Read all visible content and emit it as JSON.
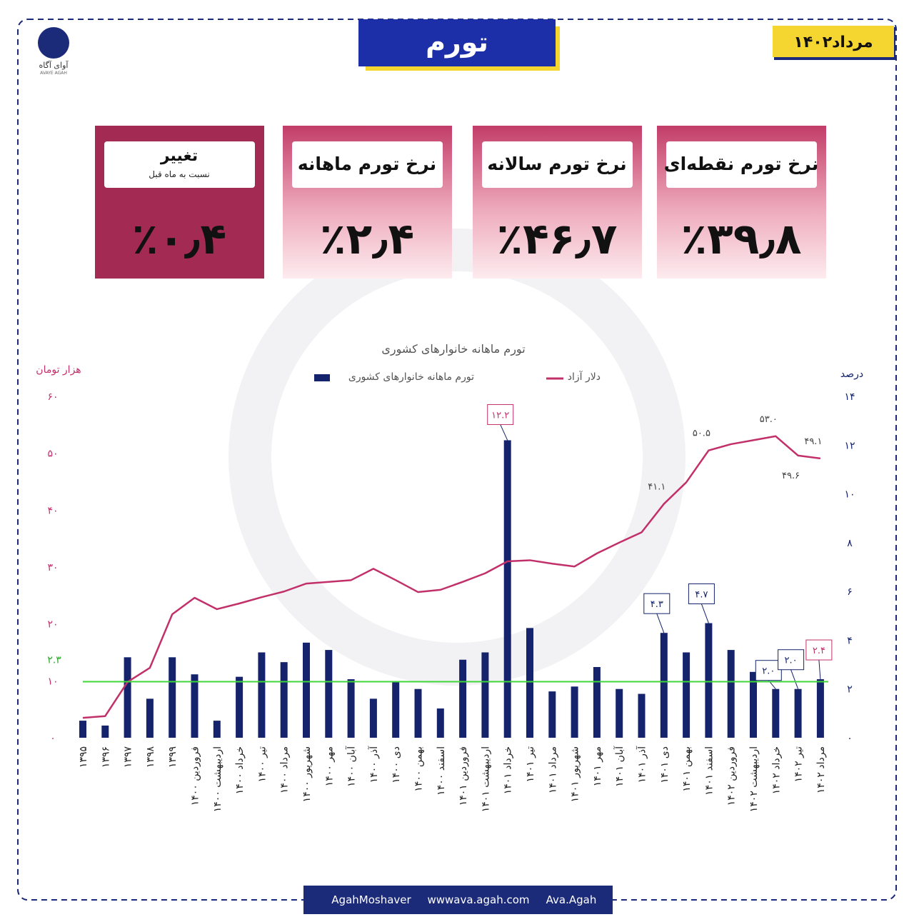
{
  "header": {
    "title": "تورم",
    "date": "مرداد۱۴۰۲",
    "logo_text": "آوای آگاه",
    "logo_latin": "AVAYE AGAH"
  },
  "cards": [
    {
      "title": "نرخ تورم نقطه‌ای",
      "value": "٪۳۹٫۸"
    },
    {
      "title": "نرخ تورم سالانه",
      "value": "٪۴۶٫۷"
    },
    {
      "title": "نرخ تورم ماهانه",
      "value": "٪۲٫۴"
    },
    {
      "title": "تغییر",
      "subtitle": "نسبت به ماه قبل",
      "value": "٪۰٫۴"
    }
  ],
  "footer": {
    "telegram": "AgahMoshaver",
    "website": "wwwava.agah.com",
    "instagram": "Ava.Agah"
  },
  "chart_data": {
    "type": "bar",
    "title": "تورم ماهانه خانوارهای کشوری",
    "ylabel": "هزار تومان",
    "y2label": "درصد",
    "categories": [
      "۱۳۹۵",
      "۱۳۹۶",
      "۱۳۹۷",
      "۱۳۹۸",
      "۱۳۹۹",
      "فروردین ۱۴۰۰",
      "اردیبهشت ۱۴۰۰",
      "خرداد ۱۴۰۰",
      "تیر ۱۴۰۰",
      "مرداد ۱۴۰۰",
      "شهریور ۱۴۰۰",
      "مهر ۱۴۰۰",
      "آبان ۱۴۰۰",
      "آذر ۱۴۰۰",
      "دی ۱۴۰۰",
      "بهمن ۱۴۰۰",
      "اسفند ۱۴۰۰",
      "فروردین ۱۴۰۱",
      "اردیبهشت ۱۴۰۱",
      "خرداد ۱۴۰۱",
      "تیر ۱۴۰۱",
      "مرداد ۱۴۰۱",
      "شهریور ۱۴۰۱",
      "مهر ۱۴۰۱",
      "آبان ۱۴۰۱",
      "آذر ۱۴۰۱",
      "دی ۱۴۰۱",
      "بهمن ۱۴۰۱",
      "اسفند ۱۴۰۱",
      "فروردین ۱۴۰۲",
      "اردیبهشت ۱۴۰۲",
      "خرداد ۱۴۰۲",
      "تیر ۱۴۰۲",
      "مرداد ۱۴۰۲"
    ],
    "series": [
      {
        "name": "تورم ماهانه خانوارهای کشوری",
        "type": "bar",
        "axis": "y2",
        "color": "#14236b",
        "values": [
          0.7,
          0.5,
          3.3,
          1.6,
          3.3,
          2.6,
          0.7,
          2.5,
          3.5,
          3.1,
          3.9,
          3.6,
          2.4,
          1.6,
          2.3,
          2.0,
          1.2,
          3.2,
          3.5,
          12.2,
          4.5,
          1.9,
          2.1,
          2.9,
          2.0,
          1.8,
          4.3,
          3.5,
          4.7,
          3.6,
          2.7,
          2.0,
          2.0,
          2.4
        ],
        "value_labels": [
          null,
          null,
          null,
          null,
          null,
          null,
          null,
          null,
          null,
          null,
          null,
          null,
          null,
          null,
          null,
          null,
          null,
          null,
          null,
          "۱۲.۲",
          null,
          null,
          null,
          null,
          null,
          null,
          "۴.۳",
          null,
          "۴.۷",
          null,
          null,
          "۲.۰",
          "۲.۰",
          "۲.۴"
        ]
      },
      {
        "name": "دلار آزاد",
        "type": "line",
        "color": "#c2306a",
        "values": [
          3.5,
          3.8,
          9.8,
          12.3,
          21.7,
          24.6,
          22.6,
          23.6,
          24.7,
          25.7,
          27.1,
          27.4,
          27.7,
          29.7,
          27.7,
          25.6,
          26.0,
          27.4,
          28.9,
          31.0,
          31.2,
          30.6,
          30.1,
          32.4,
          34.3,
          36.1,
          41.1,
          44.9,
          50.5,
          51.6,
          52.3,
          53.0,
          49.6,
          49.1
        ],
        "value_labels": [
          null,
          null,
          null,
          null,
          null,
          null,
          null,
          null,
          null,
          null,
          null,
          null,
          null,
          null,
          null,
          null,
          null,
          null,
          null,
          null,
          null,
          null,
          null,
          null,
          null,
          null,
          "۴۱.۱",
          null,
          "۵۰.۵",
          null,
          null,
          "۵۳.۰",
          "۴۹.۶",
          "۴۹.۱"
        ]
      }
    ],
    "reference_line": {
      "value": 2.3,
      "label": "۲.۳",
      "axis": "y2",
      "color": "#3fd63a"
    },
    "ylim": [
      0,
      60
    ],
    "yticks": [
      {
        "value": 0,
        "label": "۰"
      },
      {
        "value": 10,
        "label": "۱۰"
      },
      {
        "value": 20,
        "label": "۲۰"
      },
      {
        "value": 30,
        "label": "۳۰"
      },
      {
        "value": 40,
        "label": "۴۰"
      },
      {
        "value": 50,
        "label": "۵۰"
      },
      {
        "value": 60,
        "label": "۶۰"
      }
    ],
    "y2lim": [
      0,
      14
    ],
    "y2ticks": [
      {
        "value": 0,
        "label": "۰"
      },
      {
        "value": 2,
        "label": "۲"
      },
      {
        "value": 4,
        "label": "۴"
      },
      {
        "value": 6,
        "label": "۶"
      },
      {
        "value": 8,
        "label": "۸"
      },
      {
        "value": 10,
        "label": "۱۰"
      },
      {
        "value": 12,
        "label": "۱۲"
      },
      {
        "value": 14,
        "label": "۱۴"
      }
    ],
    "grid": false
  }
}
